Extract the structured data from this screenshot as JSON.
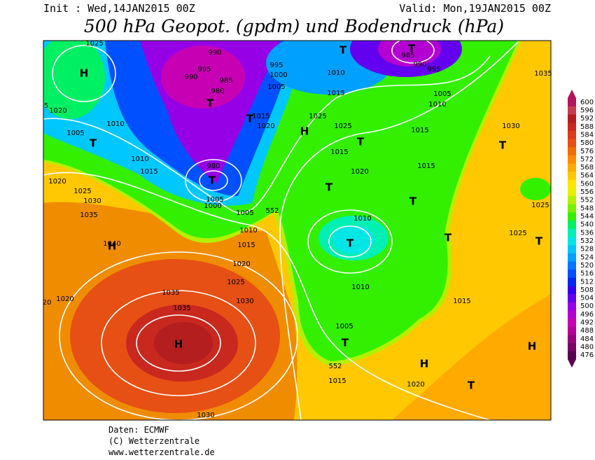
{
  "header": {
    "init": "Init : Wed,14JAN2015 00Z",
    "valid": "Valid: Mon,19JAN2015 00Z",
    "title": "500 hPa Geopot. (gpdm) und Bodendruck (hPa)"
  },
  "colorbar": {
    "levels": [
      476,
      480,
      484,
      488,
      492,
      496,
      500,
      504,
      508,
      512,
      516,
      520,
      524,
      528,
      532,
      536,
      540,
      544,
      548,
      552,
      556,
      560,
      564,
      568,
      572,
      576,
      580,
      584,
      588,
      592,
      596,
      600
    ],
    "colors": [
      "#5a0050",
      "#780064",
      "#96007d",
      "#b40096",
      "#c800b4",
      "#b400d2",
      "#9600e6",
      "#6400f0",
      "#3200f0",
      "#0028f0",
      "#0050ff",
      "#0078ff",
      "#00a0ff",
      "#00c8ff",
      "#00e6e6",
      "#00f0b4",
      "#00f064",
      "#32f000",
      "#78f000",
      "#b4f000",
      "#e6f000",
      "#ffe600",
      "#ffc800",
      "#ffaa00",
      "#ff8c00",
      "#f06e00",
      "#e65014",
      "#dc3c1e",
      "#c8281e",
      "#b41e1e",
      "#c83c50",
      "#b4145a"
    ]
  },
  "map": {
    "labels": [
      "H",
      "T",
      "H",
      "H",
      "T",
      "T",
      "T",
      "H",
      "T",
      "T",
      "T",
      "T",
      "T",
      "H",
      "T",
      "H",
      "T",
      "T",
      "T",
      "T",
      "T",
      "1025",
      "1020",
      "1010",
      "1005",
      "1010",
      "1015",
      "1020",
      "1025",
      "1030",
      "1035",
      "1040",
      "1035",
      "1035",
      "1020",
      "20",
      "1030",
      "1025",
      "1020",
      "1015",
      "1010",
      "1005",
      "552",
      "552",
      "1030",
      "1015",
      "1020",
      "1005",
      "1010",
      "1015",
      "1025",
      "1030",
      "1035",
      "1025",
      "1015",
      "1020",
      "1015",
      "1025",
      "1025",
      "1015",
      "1010",
      "1005",
      "1010",
      "1015",
      "995",
      "990",
      "985",
      "995",
      "990",
      "985",
      "980",
      "1000",
      "995",
      "1005",
      "1015",
      "1020",
      "1010",
      "980",
      "1000",
      "1005",
      "990",
      "5"
    ]
  },
  "footer": {
    "lines": [
      "Daten: ECMWF",
      "(C) Wetterzentrale",
      "www.wetterzentrale.de"
    ]
  }
}
